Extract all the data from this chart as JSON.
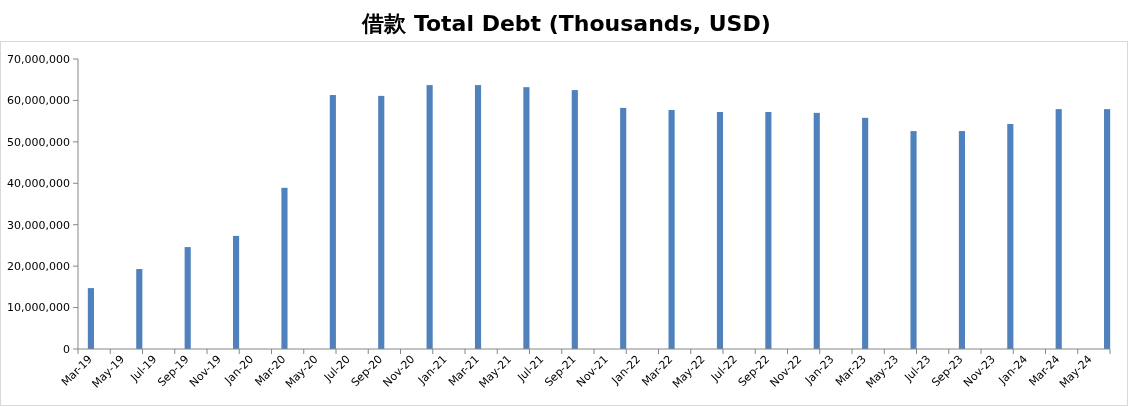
{
  "chart_data": {
    "type": "bar",
    "title": "借款 Total Debt (Thousands, USD)",
    "categories": [
      "Mar-19",
      null,
      "May-19",
      null,
      "Jul-19",
      null,
      "Sep-19",
      null,
      "Nov-19",
      null,
      "Jan-20",
      null,
      "Mar-20",
      null,
      "May-20",
      null,
      "Jul-20",
      null,
      "Sep-20",
      null,
      "Nov-20",
      null,
      "Jan-21",
      null,
      "Mar-21",
      null,
      "May-21",
      null,
      "Jul-21",
      null,
      "Sep-21",
      null,
      "Nov-21",
      null,
      "Jan-22",
      null,
      "Mar-22",
      null,
      "May-22",
      null,
      "Jul-22",
      null,
      "Sep-22",
      null,
      "Nov-22",
      null,
      "Jan-23",
      null,
      "Mar-23",
      null,
      "May-23",
      null,
      "Jul-23",
      null,
      "Sep-23",
      null,
      "Nov-23",
      null,
      "Jan-24",
      null,
      "Mar-24",
      null,
      "May-24",
      null
    ],
    "values": [
      14700000,
      null,
      null,
      19300000,
      null,
      null,
      24600000,
      null,
      null,
      27300000,
      null,
      null,
      38900000,
      null,
      null,
      61300000,
      null,
      null,
      61100000,
      null,
      null,
      63700000,
      null,
      null,
      63700000,
      null,
      null,
      63200000,
      null,
      null,
      62500000,
      null,
      null,
      58200000,
      null,
      null,
      57700000,
      null,
      null,
      57200000,
      null,
      null,
      57200000,
      null,
      null,
      57000000,
      null,
      null,
      55800000,
      null,
      null,
      52600000,
      null,
      null,
      52600000,
      null,
      null,
      54300000,
      null,
      null,
      57900000,
      null,
      null,
      57900000
    ],
    "color": "#4f81bd",
    "ylim": [
      0,
      70000000
    ],
    "yticks": [
      {
        "value": 0,
        "label": "0"
      },
      {
        "value": 10000000,
        "label": "10,000,000"
      },
      {
        "value": 20000000,
        "label": "20,000,000"
      },
      {
        "value": 30000000,
        "label": "30,000,000"
      },
      {
        "value": 40000000,
        "label": "40,000,000"
      },
      {
        "value": 50000000,
        "label": "50,000,000"
      },
      {
        "value": 60000000,
        "label": "60,000,000"
      },
      {
        "value": 70000000,
        "label": "70,000,000"
      }
    ]
  }
}
